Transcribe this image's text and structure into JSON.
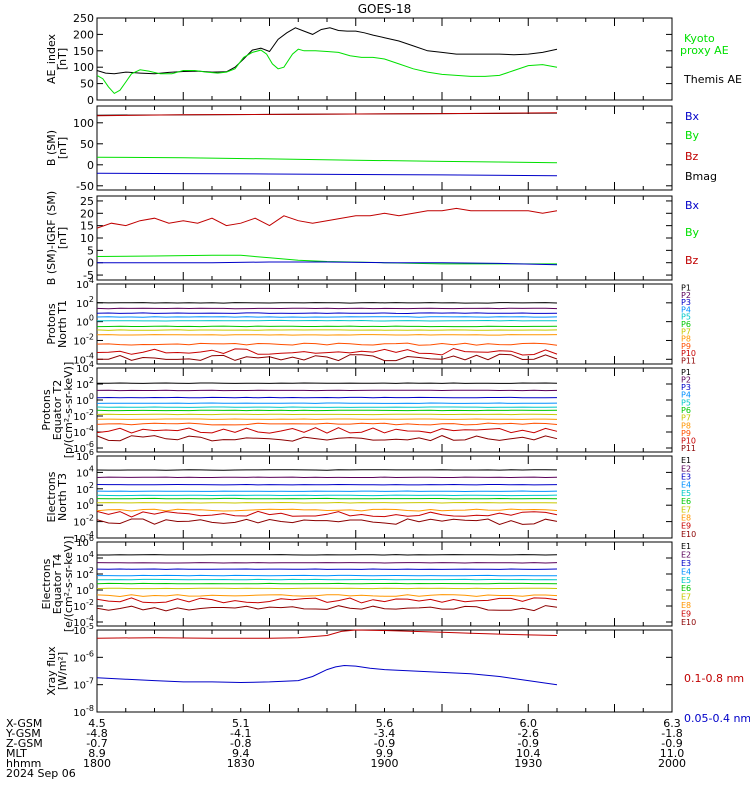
{
  "title": "GOES-18",
  "colors": {
    "axis": "#000000",
    "black": "#000000",
    "green": "#00e000",
    "red": "#c00000",
    "blue": "#0000c8",
    "dark_red": "#8b0000"
  },
  "chart_data": [
    {
      "type": "line",
      "panel": "ae",
      "ylabel": [
        "AE_index",
        "[nT]"
      ],
      "ylim": [
        0,
        250
      ],
      "y_ticks": [
        "0",
        "50",
        "100",
        "150",
        "200",
        "250"
      ],
      "legend": [
        {
          "label": "Kyoto",
          "color": "#00e000"
        },
        {
          "label": "proxy AE",
          "color": "#00e000"
        },
        {
          "label": "Themis AE",
          "color": "#000000"
        }
      ],
      "series": [
        {
          "name": "Themis AE",
          "color": "#000000",
          "x": [
            1800,
            1803,
            1806,
            1810,
            1815,
            1820,
            1825,
            1830,
            1835,
            1840,
            1845,
            1848,
            1851,
            1854,
            1857,
            1860,
            1863,
            1866,
            1869,
            1872,
            1875,
            1878,
            1881,
            1884,
            1887,
            1890,
            1893,
            1896,
            1900,
            1905,
            1910,
            1915,
            1920,
            1925,
            1930,
            1935,
            1940,
            1945,
            1950,
            1955,
            1960
          ],
          "y": [
            90,
            82,
            80,
            85,
            82,
            80,
            84,
            87,
            88,
            85,
            86,
            100,
            125,
            152,
            158,
            148,
            185,
            205,
            220,
            210,
            200,
            215,
            220,
            212,
            210,
            210,
            205,
            198,
            190,
            180,
            165,
            150,
            145,
            140,
            140,
            140,
            140,
            138,
            140,
            145,
            155
          ]
        },
        {
          "name": "Kyoto proxy AE",
          "color": "#00e000",
          "x": [
            1800,
            1802,
            1804,
            1806,
            1808,
            1810,
            1812,
            1815,
            1818,
            1822,
            1826,
            1830,
            1834,
            1838,
            1842,
            1845,
            1848,
            1851,
            1854,
            1857,
            1859,
            1861,
            1863,
            1865,
            1868,
            1870,
            1872,
            1876,
            1880,
            1884,
            1888,
            1892,
            1896,
            1900,
            1905,
            1910,
            1915,
            1920,
            1925,
            1930,
            1935,
            1940,
            1945,
            1950,
            1955,
            1960
          ],
          "y": [
            75,
            65,
            40,
            20,
            30,
            55,
            80,
            92,
            88,
            80,
            80,
            90,
            90,
            85,
            82,
            85,
            95,
            130,
            145,
            152,
            140,
            110,
            95,
            100,
            140,
            155,
            150,
            150,
            148,
            145,
            135,
            130,
            130,
            125,
            110,
            95,
            85,
            78,
            75,
            72,
            72,
            75,
            90,
            105,
            108,
            100
          ]
        }
      ]
    },
    {
      "type": "line",
      "panel": "b_sm",
      "ylabel": [
        "B (SM)",
        "[nT]"
      ],
      "ylim": [
        -60,
        140
      ],
      "y_ticks": [
        "-50",
        "0",
        "50",
        "100"
      ],
      "legend": [
        {
          "label": "Bx",
          "color": "#0000c8"
        },
        {
          "label": "By",
          "color": "#00e000"
        },
        {
          "label": "Bz",
          "color": "#c00000"
        },
        {
          "label": "Bmag",
          "color": "#000000"
        }
      ],
      "series": [
        {
          "name": "Bmag",
          "color": "#000000",
          "x": [
            1800,
            1960
          ],
          "y": [
            118,
            123
          ]
        },
        {
          "name": "Bz",
          "color": "#c00000",
          "x": [
            1800,
            1830,
            1860,
            1890,
            1920,
            1960
          ],
          "y": [
            117,
            119,
            120,
            121,
            122,
            124
          ]
        },
        {
          "name": "By",
          "color": "#00e000",
          "x": [
            1800,
            1830,
            1860,
            1890,
            1920,
            1960
          ],
          "y": [
            18,
            17,
            14,
            11,
            8,
            5
          ]
        },
        {
          "name": "Bx",
          "color": "#0000c8",
          "x": [
            1800,
            1830,
            1860,
            1890,
            1920,
            1960
          ],
          "y": [
            -20,
            -21,
            -22,
            -23,
            -24,
            -26
          ]
        }
      ]
    },
    {
      "type": "line",
      "panel": "b_minus_igrf",
      "ylabel": [
        "B (SM)-IGRF (SM)",
        "[nT]"
      ],
      "ylim": [
        -7,
        27
      ],
      "y_ticks": [
        "-5",
        "0",
        "5",
        "10",
        "15",
        "20",
        "25"
      ],
      "legend": [
        {
          "label": "Bx",
          "color": "#0000c8"
        },
        {
          "label": "By",
          "color": "#00e000"
        },
        {
          "label": "Bz",
          "color": "#c00000"
        }
      ],
      "series": [
        {
          "name": "Bz",
          "color": "#c00000",
          "x": [
            1800,
            1805,
            1810,
            1815,
            1820,
            1825,
            1830,
            1835,
            1840,
            1845,
            1850,
            1855,
            1860,
            1865,
            1870,
            1875,
            1880,
            1885,
            1890,
            1895,
            1900,
            1905,
            1910,
            1915,
            1920,
            1925,
            1930,
            1935,
            1940,
            1945,
            1950,
            1955,
            1960
          ],
          "y": [
            14,
            16,
            15,
            17,
            18,
            16,
            17,
            16,
            18,
            15,
            16,
            18,
            15,
            19,
            17,
            16,
            17,
            18,
            19,
            19,
            20,
            19,
            20,
            21,
            21,
            22,
            21,
            21,
            21,
            21,
            21,
            20,
            21
          ]
        },
        {
          "name": "By",
          "color": "#00e000",
          "x": [
            1800,
            1820,
            1840,
            1850,
            1860,
            1870,
            1880,
            1900,
            1920,
            1940,
            1960
          ],
          "y": [
            2.5,
            2.7,
            3,
            3,
            2,
            1,
            0.5,
            0,
            -0.5,
            -0.5,
            -0.5
          ]
        },
        {
          "name": "Bx",
          "color": "#0000c8",
          "x": [
            1800,
            1820,
            1840,
            1860,
            1880,
            1900,
            1920,
            1940,
            1960
          ],
          "y": [
            0,
            0,
            0,
            0.3,
            0.3,
            0,
            0,
            -0.3,
            -0.8
          ]
        }
      ]
    },
    {
      "type": "line",
      "panel": "protons_t1",
      "log_scale": true,
      "ylabel": [
        "Protons",
        "North T1"
      ],
      "ylim_log10": [
        -4.5,
        4
      ],
      "y_ticks": [
        "10-4",
        "10-2",
        "100",
        "102",
        "104"
      ],
      "channels": [
        "P1",
        "P2",
        "P3",
        "P4",
        "P5",
        "P6",
        "P7",
        "P8",
        "P9",
        "P10",
        "P11"
      ],
      "channel_colors": [
        "#000000",
        "#5a005a",
        "#0000c8",
        "#0090ff",
        "#00c8c8",
        "#00c800",
        "#c8c800",
        "#ff9600",
        "#ff5000",
        "#c80000",
        "#8b0000"
      ],
      "levels_log10": [
        2.0,
        1.4,
        0.9,
        0.5,
        0.1,
        -0.5,
        -0.9,
        -1.4,
        -2.4,
        -3.2,
        -3.8
      ]
    },
    {
      "type": "line",
      "panel": "protons_t2",
      "log_scale": true,
      "ylabel": [
        "Protons",
        "Equator T2",
        "[p/(cm²-s-sr-keV)]"
      ],
      "ylim_log10": [
        -6.5,
        4
      ],
      "y_ticks": [
        "10-6",
        "10-4",
        "10-2",
        "100",
        "102",
        "104"
      ],
      "channels": [
        "P1",
        "P2",
        "P3",
        "P4",
        "P5",
        "P6",
        "P7",
        "P8",
        "P9",
        "P10",
        "P11"
      ],
      "channel_colors": [
        "#000000",
        "#5a005a",
        "#0000c8",
        "#0090ff",
        "#00c8c8",
        "#00c800",
        "#c8c800",
        "#ff9600",
        "#ff5000",
        "#c80000",
        "#8b0000"
      ],
      "levels_log10": [
        2.1,
        1.2,
        0.3,
        -0.4,
        -0.9,
        -1.3,
        -1.8,
        -2.4,
        -3.0,
        -3.8,
        -4.8
      ]
    },
    {
      "type": "line",
      "panel": "electrons_t3",
      "log_scale": true,
      "ylabel": [
        "Electrons",
        "North T3"
      ],
      "ylim_log10": [
        -4,
        6
      ],
      "y_ticks": [
        "10-4",
        "10-2",
        "100",
        "102",
        "104",
        "106"
      ],
      "channels": [
        "E1",
        "E2",
        "E3",
        "E4",
        "E5",
        "E6",
        "E7",
        "E8",
        "E9",
        "E10"
      ],
      "channel_colors": [
        "#000000",
        "#5a005a",
        "#0000c8",
        "#0090ff",
        "#00c8c8",
        "#00c800",
        "#c8c800",
        "#ff9600",
        "#c80000",
        "#8b0000"
      ],
      "levels_log10": [
        4.3,
        3.4,
        2.5,
        1.7,
        1.2,
        0.8,
        0.3,
        -0.6,
        -1.1,
        -2.0
      ]
    },
    {
      "type": "line",
      "panel": "electrons_t4",
      "log_scale": true,
      "ylabel": [
        "Electrons",
        "Equator T4",
        "[e/(cm²-s-sr-keV)]"
      ],
      "ylim_log10": [
        -4.5,
        6
      ],
      "y_ticks": [
        "10-4",
        "10-2",
        "100",
        "102",
        "104",
        "106"
      ],
      "channels": [
        "E1",
        "E2",
        "E3",
        "E4",
        "E5",
        "E6",
        "E7",
        "E8",
        "E9",
        "E10"
      ],
      "channel_colors": [
        "#000000",
        "#5a005a",
        "#0000c8",
        "#0090ff",
        "#00c8c8",
        "#00c800",
        "#c8c800",
        "#ff9600",
        "#c80000",
        "#8b0000"
      ],
      "levels_log10": [
        4.4,
        3.4,
        2.6,
        1.8,
        1.3,
        0.8,
        0.2,
        -0.7,
        -1.3,
        -2.3
      ]
    },
    {
      "type": "line",
      "panel": "xray",
      "log_scale": true,
      "ylabel": [
        "Xray flux",
        "[W/m²]"
      ],
      "ylim_log10": [
        -8,
        -5
      ],
      "y_ticks": [
        "10-8",
        "10-7",
        "10-6",
        "10-5"
      ],
      "legend": [
        {
          "label": "0.1-0.8 nm",
          "color": "#c00000"
        },
        {
          "label": "0.05-0.4 nm",
          "color": "#0000c8"
        }
      ],
      "series": [
        {
          "name": "0.1-0.8 nm",
          "color": "#c00000",
          "x": [
            1800,
            1820,
            1840,
            1860,
            1870,
            1880,
            1885,
            1890,
            1900,
            1910,
            1920,
            1930,
            1940,
            1950,
            1960
          ],
          "y_log10": [
            -5.3,
            -5.28,
            -5.3,
            -5.3,
            -5.28,
            -5.2,
            -5.05,
            -5.0,
            -5.02,
            -5.05,
            -5.08,
            -5.12,
            -5.15,
            -5.18,
            -5.2
          ]
        },
        {
          "name": "0.05-0.4 nm",
          "color": "#0000c8",
          "x": [
            1800,
            1810,
            1820,
            1830,
            1840,
            1850,
            1860,
            1870,
            1875,
            1880,
            1883,
            1886,
            1890,
            1895,
            1900,
            1910,
            1920,
            1930,
            1940,
            1950,
            1960
          ],
          "y_log10": [
            -6.75,
            -6.8,
            -6.85,
            -6.9,
            -6.9,
            -6.92,
            -6.9,
            -6.85,
            -6.7,
            -6.45,
            -6.35,
            -6.3,
            -6.32,
            -6.4,
            -6.45,
            -6.5,
            -6.55,
            -6.6,
            -6.7,
            -6.85,
            -7.0
          ]
        }
      ]
    }
  ],
  "x_axis": {
    "xlim": [
      1800,
      2000
    ],
    "rows": [
      {
        "label": "X-GSM",
        "values": [
          "4.5",
          "5.1",
          "5.6",
          "6.0",
          "6.3"
        ]
      },
      {
        "label": "Y-GSM",
        "values": [
          "-4.8",
          "-4.1",
          "-3.4",
          "-2.6",
          "-1.8"
        ]
      },
      {
        "label": "Z-GSM",
        "values": [
          "-0.7",
          "-0.8",
          "-0.9",
          "-0.9",
          "-0.9"
        ]
      },
      {
        "label": "MLT",
        "values": [
          "8.9",
          "9.4",
          "9.9",
          "10.4",
          "11.0"
        ]
      },
      {
        "label": "hhmm",
        "values": [
          "1800",
          "1830",
          "1900",
          "1930",
          "2000"
        ]
      }
    ],
    "date": "2024 Sep 06"
  }
}
